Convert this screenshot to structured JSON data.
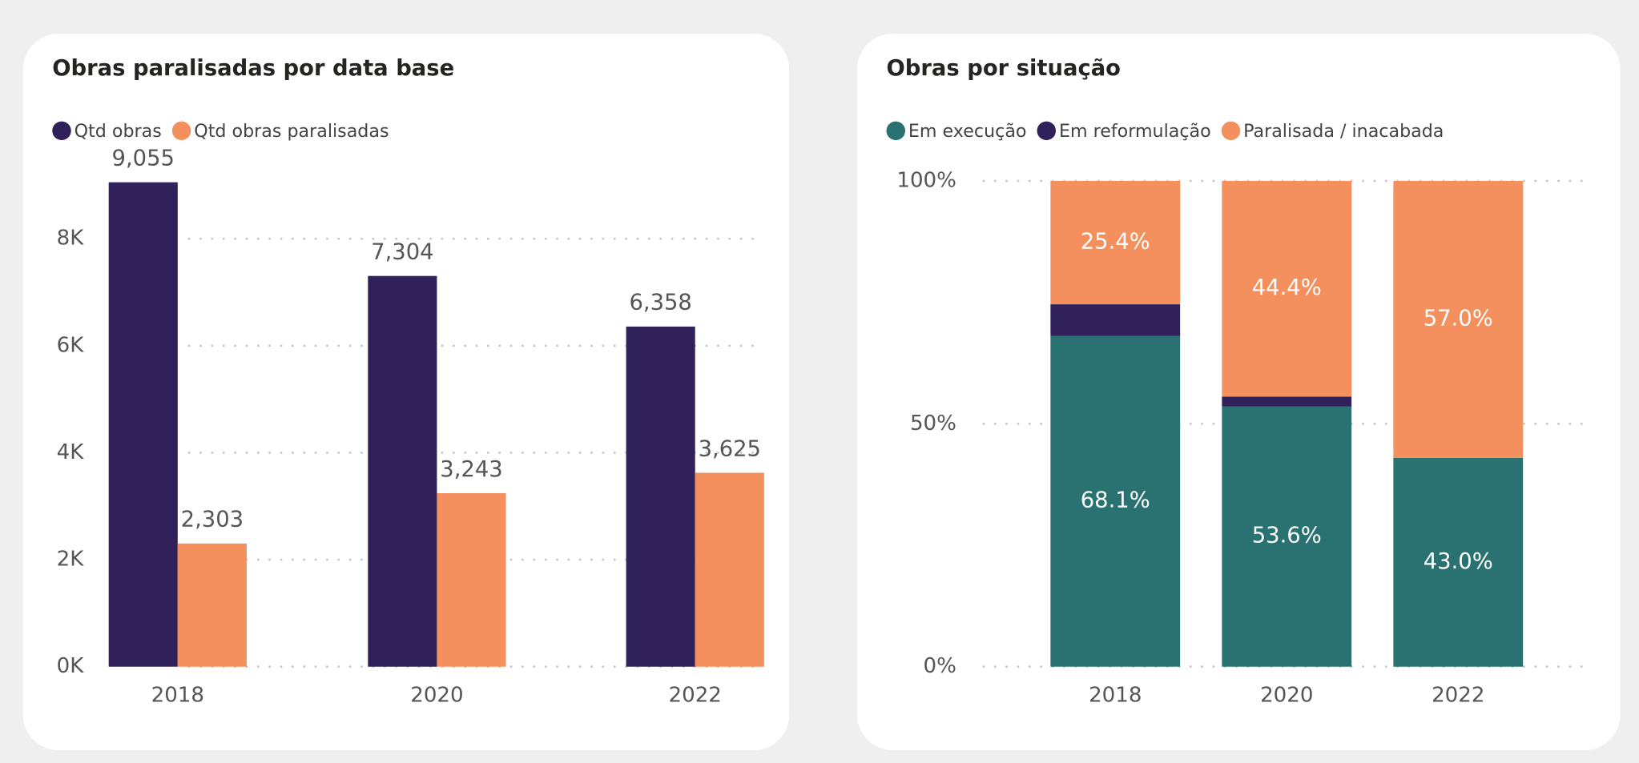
{
  "chart_data": [
    {
      "type": "bar",
      "title": "Obras paralisadas por data base",
      "categories": [
        "2018",
        "2020",
        "2022"
      ],
      "series": [
        {
          "name": "Qtd obras",
          "color": "#30215a",
          "values": [
            9055,
            7304,
            6358
          ],
          "value_labels": [
            "9,055",
            "7,304",
            "6,358"
          ]
        },
        {
          "name": "Qtd obras paralisadas",
          "color": "#f4905e",
          "values": [
            2303,
            3243,
            3625
          ],
          "value_labels": [
            "2,303",
            "3,243",
            "3,625"
          ]
        }
      ],
      "ylim": [
        0,
        9100
      ],
      "yticks": [
        {
          "value": 0,
          "label": "0K"
        },
        {
          "value": 2000,
          "label": "2K"
        },
        {
          "value": 4000,
          "label": "4K"
        },
        {
          "value": 6000,
          "label": "6K"
        },
        {
          "value": 8000,
          "label": "8K"
        }
      ],
      "grid": true
    },
    {
      "type": "stacked_bar",
      "title": "Obras por situação",
      "categories": [
        "2018",
        "2020",
        "2022"
      ],
      "series": [
        {
          "name": "Em execução",
          "color": "#2a7272",
          "values": [
            68.1,
            53.6,
            43.0
          ],
          "value_labels": [
            "68.1%",
            "53.6%",
            "43.0%"
          ]
        },
        {
          "name": "Em reformulação",
          "color": "#30215a",
          "values": [
            6.5,
            2.0,
            0
          ]
        },
        {
          "name": "Paralisada / inacabada",
          "color": "#f4905e",
          "values": [
            25.4,
            44.4,
            57.0
          ],
          "value_labels": [
            "25.4%",
            "44.4%",
            "57.0%"
          ]
        }
      ],
      "ylim": [
        0,
        100
      ],
      "yticks": [
        {
          "value": 0,
          "label": "0%"
        },
        {
          "value": 50,
          "label": "50%"
        },
        {
          "value": 100,
          "label": "100%"
        }
      ],
      "grid": true
    }
  ]
}
